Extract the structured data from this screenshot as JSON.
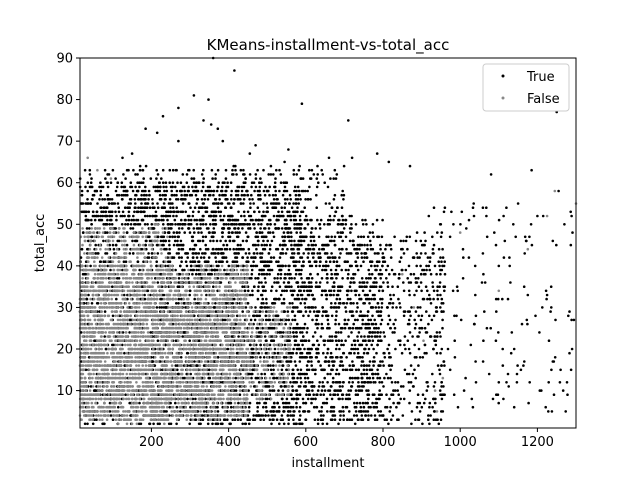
{
  "chart_data": {
    "type": "scatter",
    "title": "KMeans-installment-vs-total_acc",
    "xlabel": "installment",
    "ylabel": "total_acc",
    "xlim": [
      15,
      1300
    ],
    "ylim": [
      1,
      90
    ],
    "xticks": [
      200,
      400,
      600,
      800,
      1000,
      1200
    ],
    "xtick_labels": [
      "200",
      "400",
      "600",
      "800",
      "1000",
      "1200"
    ],
    "yticks": [
      10,
      20,
      30,
      40,
      50,
      60,
      70,
      80,
      90
    ],
    "ytick_labels": [
      "10",
      "20",
      "30",
      "40",
      "50",
      "60",
      "70",
      "80",
      "90"
    ],
    "grid": false,
    "legend": {
      "position": "top-right",
      "entries": [
        "True",
        "False"
      ]
    },
    "series": [
      {
        "name": "True",
        "color": "#000000",
        "marker_size": 1.3,
        "points": [
          [
            360,
            90
          ],
          [
            415,
            87
          ],
          [
            310,
            81
          ],
          [
            348,
            80
          ],
          [
            270,
            78
          ],
          [
            590,
            79
          ],
          [
            230,
            76
          ],
          [
            185,
            73
          ],
          [
            215,
            72
          ],
          [
            335,
            75
          ],
          [
            355,
            74
          ],
          [
            372,
            73
          ],
          [
            710,
            75
          ],
          [
            1250,
            77
          ],
          [
            270,
            70
          ],
          [
            470,
            69
          ],
          [
            555,
            68
          ],
          [
            125,
            66
          ],
          [
            150,
            67
          ],
          [
            385,
            70
          ],
          [
            455,
            67
          ],
          [
            660,
            66
          ],
          [
            720,
            66
          ],
          [
            785,
            67
          ],
          [
            815,
            65
          ],
          [
            870,
            64
          ],
          [
            545,
            65
          ],
          [
            1080,
            62
          ],
          [
            1185,
            63
          ],
          [
            1255,
            58
          ],
          [
            1035,
            55
          ],
          [
            1150,
            55
          ],
          [
            1200,
            52
          ],
          [
            1215,
            52
          ],
          [
            1270,
            50
          ],
          [
            1240,
            46
          ],
          [
            1060,
            38
          ],
          [
            1100,
            40
          ],
          [
            1130,
            36
          ],
          [
            1175,
            33
          ],
          [
            1225,
            33
          ],
          [
            1280,
            28
          ],
          [
            1160,
            26
          ],
          [
            1195,
            28
          ],
          [
            1060,
            22
          ],
          [
            1110,
            20
          ],
          [
            1140,
            20
          ],
          [
            1230,
            22
          ],
          [
            1290,
            20
          ],
          [
            1260,
            15
          ],
          [
            1075,
            14
          ],
          [
            1120,
            12
          ],
          [
            1180,
            12
          ],
          [
            1210,
            10
          ],
          [
            1085,
            8
          ],
          [
            1140,
            6
          ],
          [
            1010,
            10
          ],
          [
            1040,
            17
          ],
          [
            985,
            28
          ],
          [
            960,
            35
          ]
        ],
        "density_bands": [
          {
            "x_range": [
              15,
              600
            ],
            "y_range": [
              2,
              60
            ],
            "count": 2600
          },
          {
            "x_range": [
              200,
              800
            ],
            "y_range": [
              2,
              52
            ],
            "count": 1500
          },
          {
            "x_range": [
              600,
              960
            ],
            "y_range": [
              2,
              48
            ],
            "count": 900
          },
          {
            "x_range": [
              15,
              700
            ],
            "y_range": [
              50,
              64
            ],
            "count": 400
          },
          {
            "x_range": [
              900,
              1300
            ],
            "y_range": [
              5,
              55
            ],
            "count": 140
          }
        ]
      },
      {
        "name": "False",
        "color": "#888888",
        "marker_size": 1.3,
        "points": [
          [
            35,
            66
          ],
          [
            60,
            63
          ],
          [
            95,
            61
          ],
          [
            1245,
            58
          ],
          [
            1225,
            52
          ],
          [
            1300,
            55
          ],
          [
            1000,
            48
          ],
          [
            1175,
            44
          ],
          [
            850,
            38
          ],
          [
            880,
            30
          ],
          [
            905,
            22
          ],
          [
            955,
            13
          ],
          [
            935,
            10
          ],
          [
            940,
            5
          ],
          [
            1100,
            34
          ]
        ],
        "density_bands": [
          {
            "x_range": [
              15,
              450
            ],
            "y_range": [
              3,
              40
            ],
            "count": 2400
          },
          {
            "x_range": [
              15,
              250
            ],
            "y_range": [
              2,
              50
            ],
            "count": 900
          },
          {
            "x_range": [
              250,
              560
            ],
            "y_range": [
              8,
              30
            ],
            "count": 600
          }
        ]
      }
    ]
  }
}
